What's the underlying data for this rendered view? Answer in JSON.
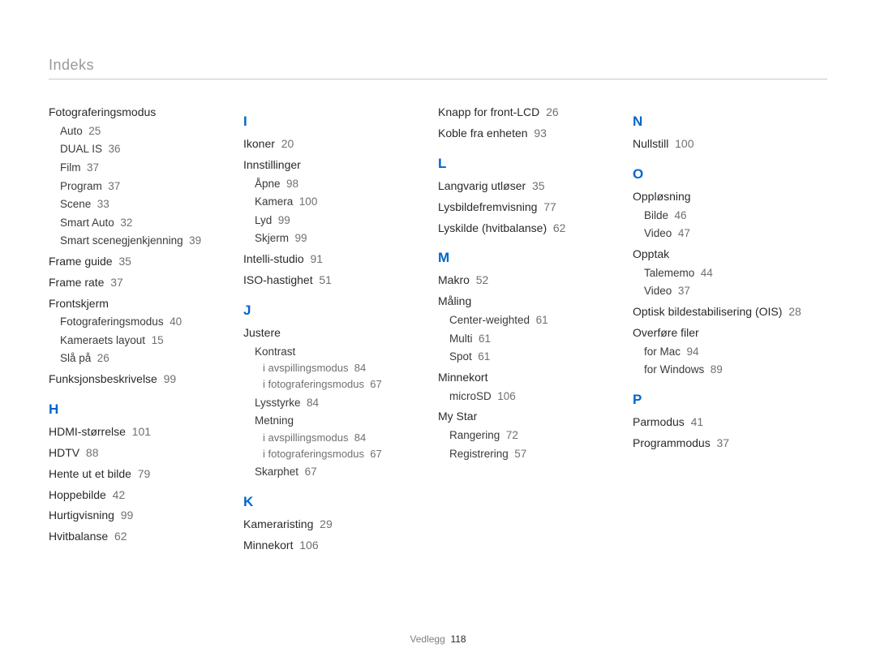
{
  "page_title": "Indeks",
  "footer": {
    "label": "Vedlegg",
    "page": "118"
  },
  "colors": {
    "letter": "#0066cc",
    "title": "#9a9a9a",
    "text": "#2a2a2a",
    "muted": "#707070",
    "rule": "#c8c8c8",
    "bg": "#ffffff"
  },
  "columns": [
    [
      {
        "type": "entry",
        "label": "Fotograferingsmodus"
      },
      {
        "type": "sub1",
        "label": "Auto",
        "page": "25"
      },
      {
        "type": "sub1",
        "label": "DUAL IS",
        "page": "36"
      },
      {
        "type": "sub1",
        "label": "Film",
        "page": "37"
      },
      {
        "type": "sub1",
        "label": "Program",
        "page": "37"
      },
      {
        "type": "sub1",
        "label": "Scene",
        "page": "33"
      },
      {
        "type": "sub1",
        "label": "Smart Auto",
        "page": "32"
      },
      {
        "type": "sub1",
        "label": "Smart scenegjenkjenning",
        "page": "39"
      },
      {
        "type": "entry",
        "label": "Frame guide",
        "page": "35"
      },
      {
        "type": "entry",
        "label": "Frame rate",
        "page": "37"
      },
      {
        "type": "entry",
        "label": "Frontskjerm"
      },
      {
        "type": "sub1",
        "label": "Fotograferingsmodus",
        "page": "40"
      },
      {
        "type": "sub1",
        "label": "Kameraets layout",
        "page": "15"
      },
      {
        "type": "sub1",
        "label": "Slå på",
        "page": "26"
      },
      {
        "type": "entry",
        "label": "Funksjonsbeskrivelse",
        "page": "99"
      },
      {
        "type": "letter",
        "label": "H"
      },
      {
        "type": "entry",
        "label": "HDMI-størrelse",
        "page": "101"
      },
      {
        "type": "entry",
        "label": "HDTV",
        "page": "88"
      },
      {
        "type": "entry",
        "label": "Hente ut et bilde",
        "page": "79"
      },
      {
        "type": "entry",
        "label": "Hoppebilde",
        "page": "42"
      },
      {
        "type": "entry",
        "label": "Hurtigvisning",
        "page": "99"
      },
      {
        "type": "entry",
        "label": "Hvitbalanse",
        "page": "62"
      }
    ],
    [
      {
        "type": "letter",
        "label": "I"
      },
      {
        "type": "entry",
        "label": "Ikoner",
        "page": "20"
      },
      {
        "type": "entry",
        "label": "Innstillinger"
      },
      {
        "type": "sub1",
        "label": "Åpne",
        "page": "98"
      },
      {
        "type": "sub1",
        "label": "Kamera",
        "page": "100"
      },
      {
        "type": "sub1",
        "label": "Lyd",
        "page": "99"
      },
      {
        "type": "sub1",
        "label": "Skjerm",
        "page": "99"
      },
      {
        "type": "entry",
        "label": "Intelli-studio",
        "page": "91"
      },
      {
        "type": "entry",
        "label": "ISO-hastighet",
        "page": "51"
      },
      {
        "type": "letter",
        "label": "J"
      },
      {
        "type": "entry",
        "label": "Justere"
      },
      {
        "type": "sub1",
        "label": "Kontrast"
      },
      {
        "type": "sub2",
        "label": "i avspillingsmodus",
        "page": "84"
      },
      {
        "type": "sub2",
        "label": "i fotograferingsmodus",
        "page": "67"
      },
      {
        "type": "sub1",
        "label": "Lysstyrke",
        "page": "84"
      },
      {
        "type": "sub1",
        "label": "Metning"
      },
      {
        "type": "sub2",
        "label": "i avspillingsmodus",
        "page": "84"
      },
      {
        "type": "sub2",
        "label": "i fotograferingsmodus",
        "page": "67"
      },
      {
        "type": "sub1",
        "label": "Skarphet",
        "page": "67"
      },
      {
        "type": "letter",
        "label": "K"
      },
      {
        "type": "entry",
        "label": "Kameraristing",
        "page": "29"
      },
      {
        "type": "entry",
        "label": "Minnekort",
        "page": "106"
      }
    ],
    [
      {
        "type": "entry",
        "label": "Knapp for front-LCD",
        "page": "26"
      },
      {
        "type": "entry",
        "label": "Koble fra enheten",
        "page": "93"
      },
      {
        "type": "letter",
        "label": "L"
      },
      {
        "type": "entry",
        "label": "Langvarig utløser",
        "page": "35"
      },
      {
        "type": "entry",
        "label": "Lysbildefremvisning",
        "page": "77"
      },
      {
        "type": "entry",
        "label": "Lyskilde (hvitbalanse)",
        "page": "62"
      },
      {
        "type": "letter",
        "label": "M"
      },
      {
        "type": "entry",
        "label": "Makro",
        "page": "52"
      },
      {
        "type": "entry",
        "label": "Måling"
      },
      {
        "type": "sub1",
        "label": "Center-weighted",
        "page": "61"
      },
      {
        "type": "sub1",
        "label": "Multi",
        "page": "61"
      },
      {
        "type": "sub1",
        "label": "Spot",
        "page": "61"
      },
      {
        "type": "entry",
        "label": "Minnekort"
      },
      {
        "type": "sub1",
        "label": "microSD",
        "page": "106"
      },
      {
        "type": "entry",
        "label": "My Star"
      },
      {
        "type": "sub1",
        "label": "Rangering",
        "page": "72"
      },
      {
        "type": "sub1",
        "label": "Registrering",
        "page": "57"
      }
    ],
    [
      {
        "type": "letter",
        "label": "N"
      },
      {
        "type": "entry",
        "label": "Nullstill",
        "page": "100"
      },
      {
        "type": "letter",
        "label": "O"
      },
      {
        "type": "entry",
        "label": "Oppløsning"
      },
      {
        "type": "sub1",
        "label": "Bilde",
        "page": "46"
      },
      {
        "type": "sub1",
        "label": "Video",
        "page": "47"
      },
      {
        "type": "entry",
        "label": "Opptak"
      },
      {
        "type": "sub1",
        "label": "Talememo",
        "page": "44"
      },
      {
        "type": "sub1",
        "label": "Video",
        "page": "37"
      },
      {
        "type": "entry",
        "label": "Optisk bildestabilisering (OIS)",
        "page": "28"
      },
      {
        "type": "entry",
        "label": "Overføre filer"
      },
      {
        "type": "sub1",
        "label": "for Mac",
        "page": "94"
      },
      {
        "type": "sub1",
        "label": "for Windows",
        "page": "89"
      },
      {
        "type": "letter",
        "label": "P"
      },
      {
        "type": "entry",
        "label": "Parmodus",
        "page": "41"
      },
      {
        "type": "entry",
        "label": "Programmodus",
        "page": "37"
      }
    ]
  ]
}
